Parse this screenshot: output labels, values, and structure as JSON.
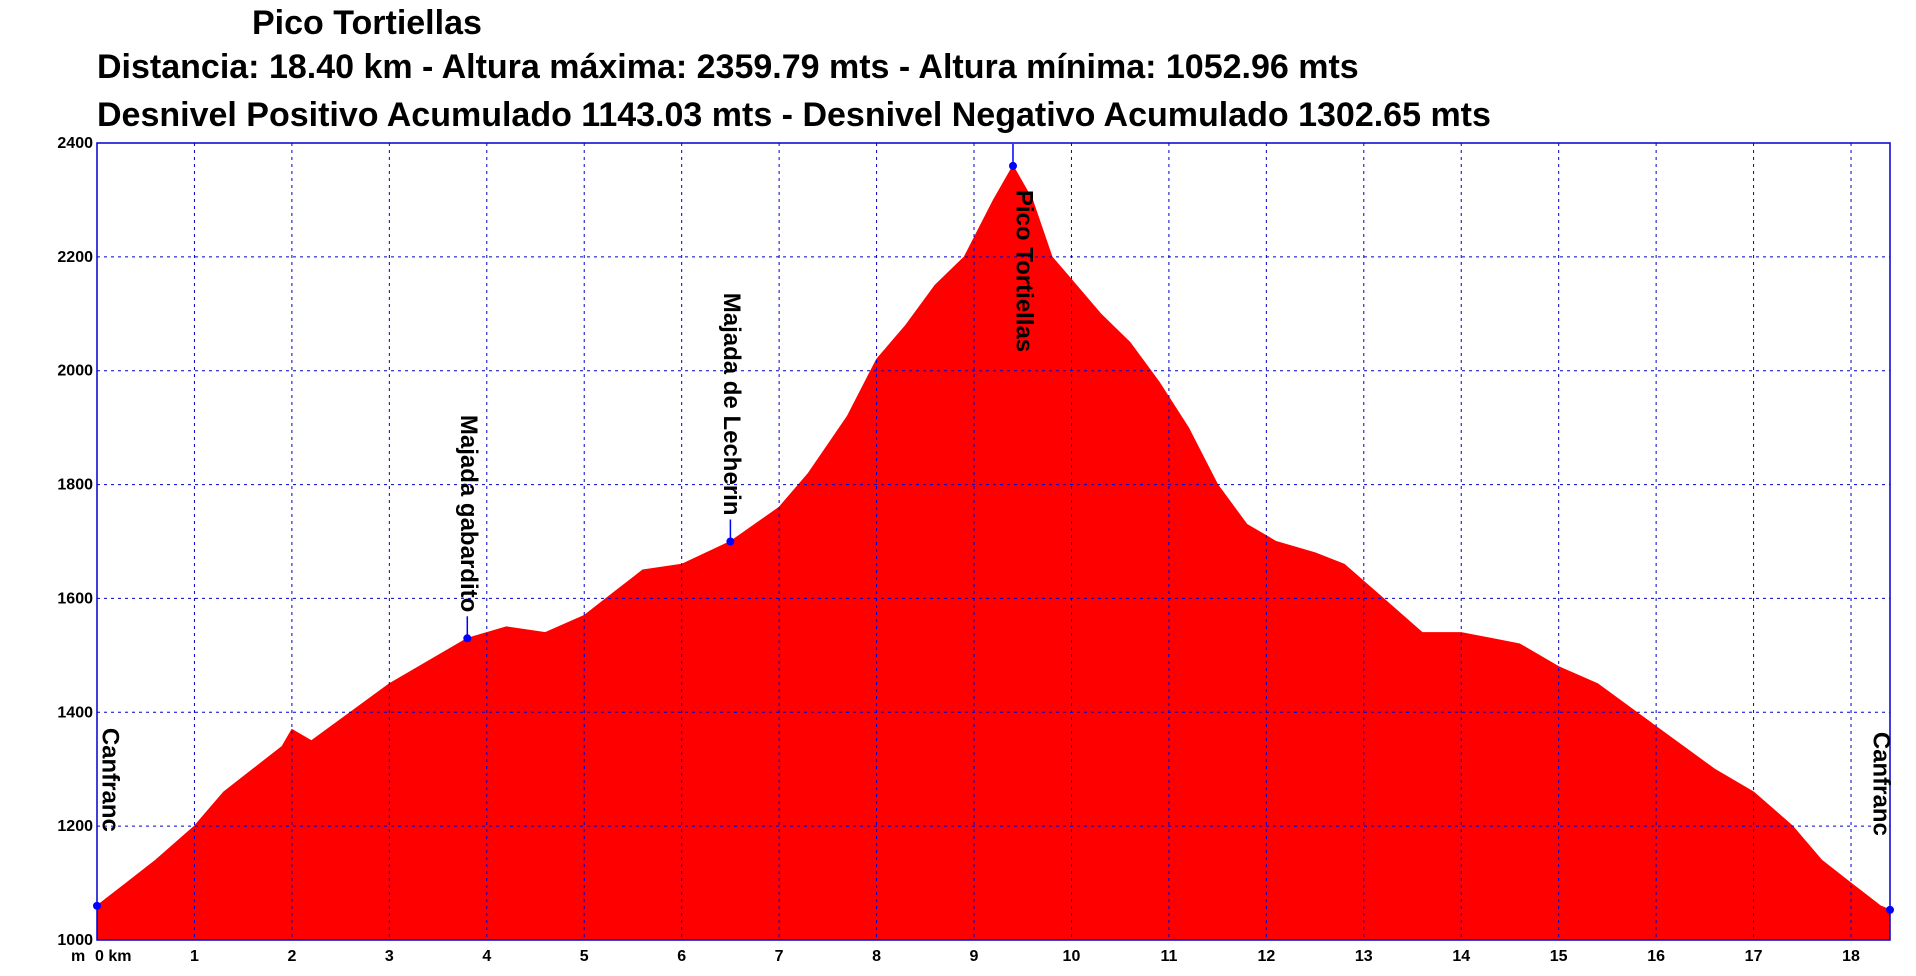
{
  "title": "Pico Tortiellas",
  "stats_line_1": "Distancia: 18.40 km - Altura máxima: 2359.79 mts - Altura mínima: 1052.96 mts",
  "stats_line_2": "Desnivel Positivo Acumulado 1143.03 mts - Desnivel Negativo Acumulado 1302.65 mts",
  "chart_data": {
    "type": "area",
    "title": "Pico Tortiellas",
    "x_unit_label": "km",
    "y_unit_label": "m",
    "xlim": [
      0,
      18.4
    ],
    "ylim": [
      1000,
      2400
    ],
    "x_ticks": [
      0,
      1,
      2,
      3,
      4,
      5,
      6,
      7,
      8,
      9,
      10,
      11,
      12,
      13,
      14,
      15,
      16,
      17,
      18
    ],
    "x_tick_labels": [
      "0 km",
      "1",
      "2",
      "3",
      "4",
      "5",
      "6",
      "7",
      "8",
      "9",
      "10",
      "11",
      "12",
      "13",
      "14",
      "15",
      "16",
      "17",
      "18"
    ],
    "y_ticks": [
      1000,
      1200,
      1400,
      1600,
      1800,
      2000,
      2200,
      2400
    ],
    "grid": true,
    "colors": {
      "fill": "#ff0000",
      "grid": "#0000cc",
      "frame": "#0000cc",
      "waypoint": "#0000ff"
    },
    "series": [
      {
        "x": [
          0,
          0.3,
          0.6,
          1.0,
          1.3,
          1.6,
          1.9,
          2.0,
          2.2,
          2.6,
          3.0,
          3.4,
          3.8,
          4.2,
          4.6,
          5.0,
          5.3,
          5.6,
          6.0,
          6.5,
          7.0,
          7.3,
          7.7,
          8.0,
          8.3,
          8.6,
          8.9,
          9.2,
          9.4,
          9.6,
          9.8,
          10.0,
          10.3,
          10.6,
          10.9,
          11.2,
          11.5,
          11.8,
          12.1,
          12.5,
          12.8,
          13.2,
          13.6,
          14.0,
          14.3,
          14.6,
          15.0,
          15.4,
          15.8,
          16.2,
          16.6,
          17.0,
          17.4,
          17.7,
          18.0,
          18.3,
          18.4
        ],
        "y": [
          1060,
          1100,
          1140,
          1200,
          1260,
          1300,
          1340,
          1370,
          1350,
          1400,
          1450,
          1490,
          1530,
          1550,
          1540,
          1570,
          1610,
          1650,
          1660,
          1700,
          1760,
          1820,
          1920,
          2020,
          2080,
          2150,
          2200,
          2300,
          2360,
          2300,
          2200,
          2160,
          2100,
          2050,
          1980,
          1900,
          1800,
          1730,
          1700,
          1680,
          1660,
          1600,
          1540,
          1540,
          1530,
          1520,
          1480,
          1450,
          1400,
          1350,
          1300,
          1260,
          1200,
          1140,
          1100,
          1060,
          1053
        ]
      }
    ],
    "waypoints": [
      {
        "x": 0.0,
        "y": 1060,
        "label": "Canfranc"
      },
      {
        "x": 3.8,
        "y": 1530,
        "label": "Majada gabardito"
      },
      {
        "x": 6.5,
        "y": 1700,
        "label": "Majada de Lecherin"
      },
      {
        "x": 9.4,
        "y": 2359.79,
        "label": "Pico Tortiellas"
      },
      {
        "x": 18.4,
        "y": 1052.96,
        "label": "Canfranc"
      }
    ]
  }
}
